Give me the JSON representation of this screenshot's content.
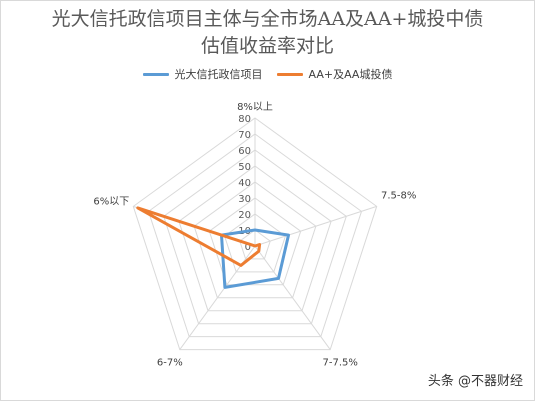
{
  "chart_data": {
    "type": "radar",
    "title_lines": [
      "光大信托政信项目主体与全市场AA及AA+城投中债",
      "估值收益率对比"
    ],
    "categories": [
      "8%以上",
      "7.5-8%",
      "7-7.5%",
      "6-7%",
      "6%以下"
    ],
    "scale_ticks": [
      0,
      10,
      20,
      30,
      40,
      50,
      60,
      70,
      80
    ],
    "rmax": 80,
    "grid": true,
    "legend_position": "top",
    "series": [
      {
        "name": "光大信托政信项目",
        "color": "#5b9bd5",
        "values": [
          10,
          22,
          25,
          32,
          22
        ]
      },
      {
        "name": "AA+及AA城投债",
        "color": "#ed7d31",
        "values": [
          0,
          3,
          4,
          15,
          77
        ]
      }
    ]
  },
  "watermark": "头条 @不器财经"
}
